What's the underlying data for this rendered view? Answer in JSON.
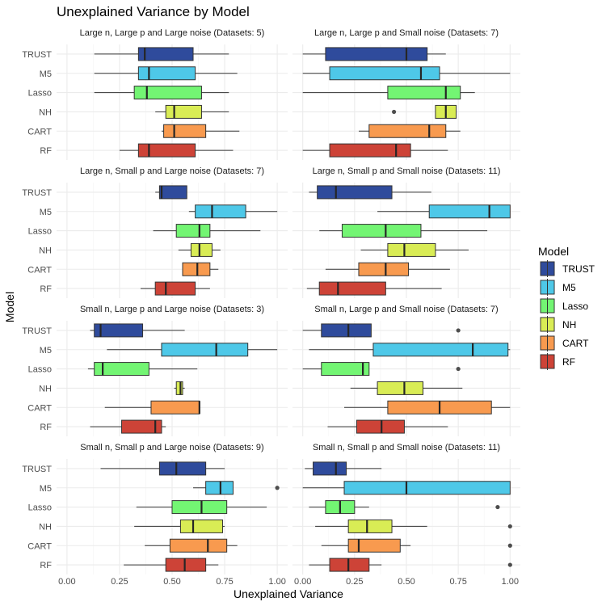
{
  "chart_data": {
    "type": "boxplot",
    "title": "Unexplained Variance by Model",
    "xlabel": "Unexplained Variance",
    "ylabel": "Model",
    "xlim": [
      0,
      1
    ],
    "xticks": [
      0,
      0.25,
      0.5,
      0.75,
      1
    ],
    "xtick_labels": [
      "0.00",
      "0.25",
      "0.50",
      "0.75",
      "1.00"
    ],
    "models": [
      "TRUST",
      "M5",
      "Lasso",
      "NH",
      "CART",
      "RF"
    ],
    "colors": {
      "TRUST": "#2f4b9c",
      "M5": "#4ec8e8",
      "Lasso": "#73f573",
      "NH": "#d9ec55",
      "CART": "#f89a4f",
      "RF": "#cd4337"
    },
    "legend": {
      "title": "Model",
      "position": "right",
      "entries": [
        "TRUST",
        "M5",
        "Lasso",
        "NH",
        "CART",
        "RF"
      ]
    },
    "facets": [
      {
        "title": "Large n, Large p and Large noise (Datasets: 5)",
        "boxes": {
          "TRUST": {
            "whislo": 0.13,
            "q1": 0.34,
            "med": 0.37,
            "q3": 0.6,
            "whishi": 0.77,
            "outliers": []
          },
          "M5": {
            "whislo": 0.13,
            "q1": 0.34,
            "med": 0.39,
            "q3": 0.61,
            "whishi": 0.81,
            "outliers": []
          },
          "Lasso": {
            "whislo": 0.13,
            "q1": 0.32,
            "med": 0.38,
            "q3": 0.64,
            "whishi": 0.77,
            "outliers": []
          },
          "NH": {
            "whislo": 0.42,
            "q1": 0.47,
            "med": 0.51,
            "q3": 0.64,
            "whishi": 0.77,
            "outliers": []
          },
          "CART": {
            "whislo": 0.45,
            "q1": 0.46,
            "med": 0.51,
            "q3": 0.66,
            "whishi": 0.82,
            "outliers": []
          },
          "RF": {
            "whislo": 0.25,
            "q1": 0.34,
            "med": 0.39,
            "q3": 0.61,
            "whishi": 0.79,
            "outliers": []
          }
        }
      },
      {
        "title": "Large n, Large p and Small noise (Datasets: 7)",
        "boxes": {
          "TRUST": {
            "whislo": 0.0,
            "q1": 0.11,
            "med": 0.5,
            "q3": 0.6,
            "whishi": 0.69,
            "outliers": []
          },
          "M5": {
            "whislo": 0.0,
            "q1": 0.13,
            "med": 0.57,
            "q3": 0.66,
            "whishi": 1.0,
            "outliers": []
          },
          "Lasso": {
            "whislo": 0.0,
            "q1": 0.41,
            "med": 0.69,
            "q3": 0.76,
            "whishi": 0.83,
            "outliers": []
          },
          "NH": {
            "whislo": 0.64,
            "q1": 0.64,
            "med": 0.69,
            "q3": 0.74,
            "whishi": 0.74,
            "outliers": [
              0.44
            ]
          },
          "CART": {
            "whislo": 0.27,
            "q1": 0.32,
            "med": 0.61,
            "q3": 0.69,
            "whishi": 0.76,
            "outliers": []
          },
          "RF": {
            "whislo": 0.0,
            "q1": 0.13,
            "med": 0.45,
            "q3": 0.52,
            "whishi": 0.7,
            "outliers": []
          }
        }
      },
      {
        "title": "Large n, Small p and Large noise (Datasets: 7)",
        "boxes": {
          "TRUST": {
            "whislo": 0.42,
            "q1": 0.44,
            "med": 0.45,
            "q3": 0.57,
            "whishi": 0.57,
            "outliers": []
          },
          "M5": {
            "whislo": 0.58,
            "q1": 0.61,
            "med": 0.69,
            "q3": 0.85,
            "whishi": 1.0,
            "outliers": []
          },
          "Lasso": {
            "whislo": 0.41,
            "q1": 0.52,
            "med": 0.63,
            "q3": 0.68,
            "whishi": 0.92,
            "outliers": []
          },
          "NH": {
            "whislo": 0.53,
            "q1": 0.59,
            "med": 0.63,
            "q3": 0.69,
            "whishi": 0.73,
            "outliers": []
          },
          "CART": {
            "whislo": 0.55,
            "q1": 0.55,
            "med": 0.62,
            "q3": 0.68,
            "whishi": 0.72,
            "outliers": []
          },
          "RF": {
            "whislo": 0.35,
            "q1": 0.42,
            "med": 0.47,
            "q3": 0.61,
            "whishi": 0.68,
            "outliers": []
          }
        }
      },
      {
        "title": "Large n, Small p and Small noise (Datasets: 11)",
        "boxes": {
          "TRUST": {
            "whislo": 0.03,
            "q1": 0.07,
            "med": 0.16,
            "q3": 0.43,
            "whishi": 0.62,
            "outliers": []
          },
          "M5": {
            "whislo": 0.36,
            "q1": 0.61,
            "med": 0.9,
            "q3": 1.0,
            "whishi": 1.0,
            "outliers": []
          },
          "Lasso": {
            "whislo": 0.08,
            "q1": 0.19,
            "med": 0.4,
            "q3": 0.57,
            "whishi": 0.89,
            "outliers": []
          },
          "NH": {
            "whislo": 0.28,
            "q1": 0.41,
            "med": 0.49,
            "q3": 0.64,
            "whishi": 0.8,
            "outliers": []
          },
          "CART": {
            "whislo": 0.11,
            "q1": 0.27,
            "med": 0.4,
            "q3": 0.51,
            "whishi": 0.71,
            "outliers": []
          },
          "RF": {
            "whislo": 0.02,
            "q1": 0.08,
            "med": 0.17,
            "q3": 0.4,
            "whishi": 0.67,
            "outliers": []
          }
        }
      },
      {
        "title": "Small n, Large p and Large noise (Datasets: 3)",
        "boxes": {
          "TRUST": {
            "whislo": 0.11,
            "q1": 0.13,
            "med": 0.16,
            "q3": 0.36,
            "whishi": 0.56,
            "outliers": []
          },
          "M5": {
            "whislo": 0.19,
            "q1": 0.45,
            "med": 0.71,
            "q3": 0.86,
            "whishi": 1.0,
            "outliers": []
          },
          "Lasso": {
            "whislo": 0.1,
            "q1": 0.13,
            "med": 0.17,
            "q3": 0.39,
            "whishi": 0.62,
            "outliers": []
          },
          "NH": {
            "whislo": 0.51,
            "q1": 0.52,
            "med": 0.54,
            "q3": 0.55,
            "whishi": 0.56,
            "outliers": []
          },
          "CART": {
            "whislo": 0.18,
            "q1": 0.4,
            "med": 0.63,
            "q3": 0.63,
            "whishi": 0.63,
            "outliers": []
          },
          "RF": {
            "whislo": 0.11,
            "q1": 0.26,
            "med": 0.42,
            "q3": 0.45,
            "whishi": 0.47,
            "outliers": []
          }
        }
      },
      {
        "title": "Small n, Large p and Small noise (Datasets: 7)",
        "boxes": {
          "TRUST": {
            "whislo": 0.0,
            "q1": 0.09,
            "med": 0.22,
            "q3": 0.33,
            "whishi": 0.33,
            "outliers": [
              0.75
            ]
          },
          "M5": {
            "whislo": 0.03,
            "q1": 0.34,
            "med": 0.82,
            "q3": 0.99,
            "whishi": 1.0,
            "outliers": []
          },
          "Lasso": {
            "whislo": 0.0,
            "q1": 0.09,
            "med": 0.29,
            "q3": 0.32,
            "whishi": 0.32,
            "outliers": [
              0.75
            ]
          },
          "NH": {
            "whislo": 0.23,
            "q1": 0.36,
            "med": 0.49,
            "q3": 0.58,
            "whishi": 0.77,
            "outliers": []
          },
          "CART": {
            "whislo": 0.2,
            "q1": 0.41,
            "med": 0.66,
            "q3": 0.91,
            "whishi": 1.0,
            "outliers": []
          },
          "RF": {
            "whislo": 0.12,
            "q1": 0.26,
            "med": 0.38,
            "q3": 0.49,
            "whishi": 0.7,
            "outliers": []
          }
        }
      },
      {
        "title": "Small n, Small p and Large noise (Datasets: 9)",
        "boxes": {
          "TRUST": {
            "whislo": 0.16,
            "q1": 0.44,
            "med": 0.52,
            "q3": 0.66,
            "whishi": 0.75,
            "outliers": []
          },
          "M5": {
            "whislo": 0.6,
            "q1": 0.66,
            "med": 0.73,
            "q3": 0.79,
            "whishi": 0.79,
            "outliers": [
              1.0
            ]
          },
          "Lasso": {
            "whislo": 0.33,
            "q1": 0.5,
            "med": 0.64,
            "q3": 0.76,
            "whishi": 0.95,
            "outliers": []
          },
          "NH": {
            "whislo": 0.32,
            "q1": 0.54,
            "med": 0.6,
            "q3": 0.74,
            "whishi": 0.75,
            "outliers": []
          },
          "CART": {
            "whislo": 0.37,
            "q1": 0.49,
            "med": 0.67,
            "q3": 0.76,
            "whishi": 0.81,
            "outliers": []
          },
          "RF": {
            "whislo": 0.27,
            "q1": 0.47,
            "med": 0.56,
            "q3": 0.66,
            "whishi": 0.72,
            "outliers": []
          }
        }
      },
      {
        "title": "Small n, Small p and Small noise (Datasets: 11)",
        "boxes": {
          "TRUST": {
            "whislo": 0.01,
            "q1": 0.05,
            "med": 0.16,
            "q3": 0.21,
            "whishi": 0.38,
            "outliers": []
          },
          "M5": {
            "whislo": 0.0,
            "q1": 0.2,
            "med": 0.5,
            "q3": 1.0,
            "whishi": 1.0,
            "outliers": []
          },
          "Lasso": {
            "whislo": 0.03,
            "q1": 0.11,
            "med": 0.18,
            "q3": 0.25,
            "whishi": 0.32,
            "outliers": [
              0.94
            ]
          },
          "NH": {
            "whislo": 0.06,
            "q1": 0.22,
            "med": 0.31,
            "q3": 0.43,
            "whishi": 0.6,
            "outliers": [
              1.0
            ]
          },
          "CART": {
            "whislo": 0.09,
            "q1": 0.22,
            "med": 0.27,
            "q3": 0.47,
            "whishi": 0.52,
            "outliers": [
              1.0
            ]
          },
          "RF": {
            "whislo": 0.03,
            "q1": 0.13,
            "med": 0.22,
            "q3": 0.32,
            "whishi": 0.38,
            "outliers": [
              1.0
            ]
          }
        }
      }
    ]
  }
}
